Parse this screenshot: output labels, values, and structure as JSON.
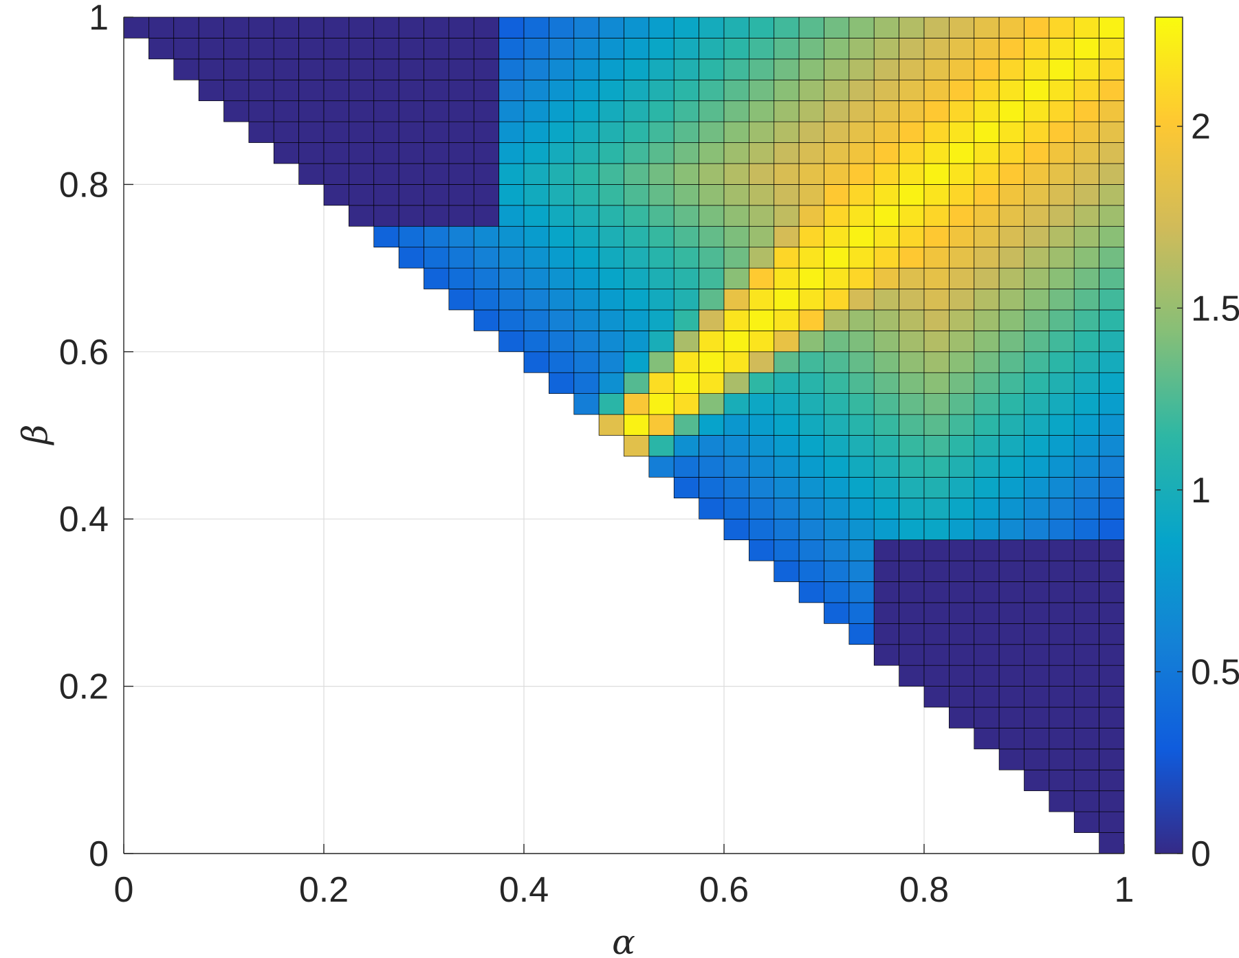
{
  "chart_data": {
    "type": "heatmap",
    "title": "",
    "xlabel": "α",
    "ylabel": "β",
    "xlim": [
      0,
      1
    ],
    "ylim": [
      0,
      1
    ],
    "grid": true,
    "colormap": "parula",
    "x_ticks": [
      "0",
      "0.2",
      "0.4",
      "0.6",
      "0.8",
      "1"
    ],
    "y_ticks": [
      "0",
      "0.2",
      "0.4",
      "0.6",
      "0.8",
      "1"
    ],
    "colorbar": {
      "range": [
        0,
        2.3
      ],
      "ticks": [
        "0",
        "0.5",
        "1",
        "1.5",
        "2"
      ],
      "colors": [
        "#352a87",
        "#0f5cdd",
        "#1481d6",
        "#06a4ca",
        "#2eb7a4",
        "#87bf77",
        "#d1bb59",
        "#fec832",
        "#f9fb0e"
      ]
    },
    "grid_cells": {
      "nx": 40,
      "ny": 40,
      "dx": 0.025,
      "dy": 0.025
    },
    "domain": "cells with alpha + beta >= 1",
    "regions": [
      {
        "description": "beta >= 0.75 and alpha < 0.375 (upper-left)",
        "value": 0.0
      },
      {
        "description": "alpha >= 0.75 and beta < 0.375 (lower-right)",
        "value": 0.0
      },
      {
        "description": "ridge along beta ≈ alpha",
        "value": 2.3
      },
      {
        "description": "near alpha + beta = 1 away from ridge",
        "value": 0.35
      }
    ],
    "notes": "value peaks (~2.2–2.3) along the diagonal beta = alpha and decreases toward about 0.3–0.5 near the boundary alpha + beta = 1; two rectangular corner regions are 0"
  }
}
